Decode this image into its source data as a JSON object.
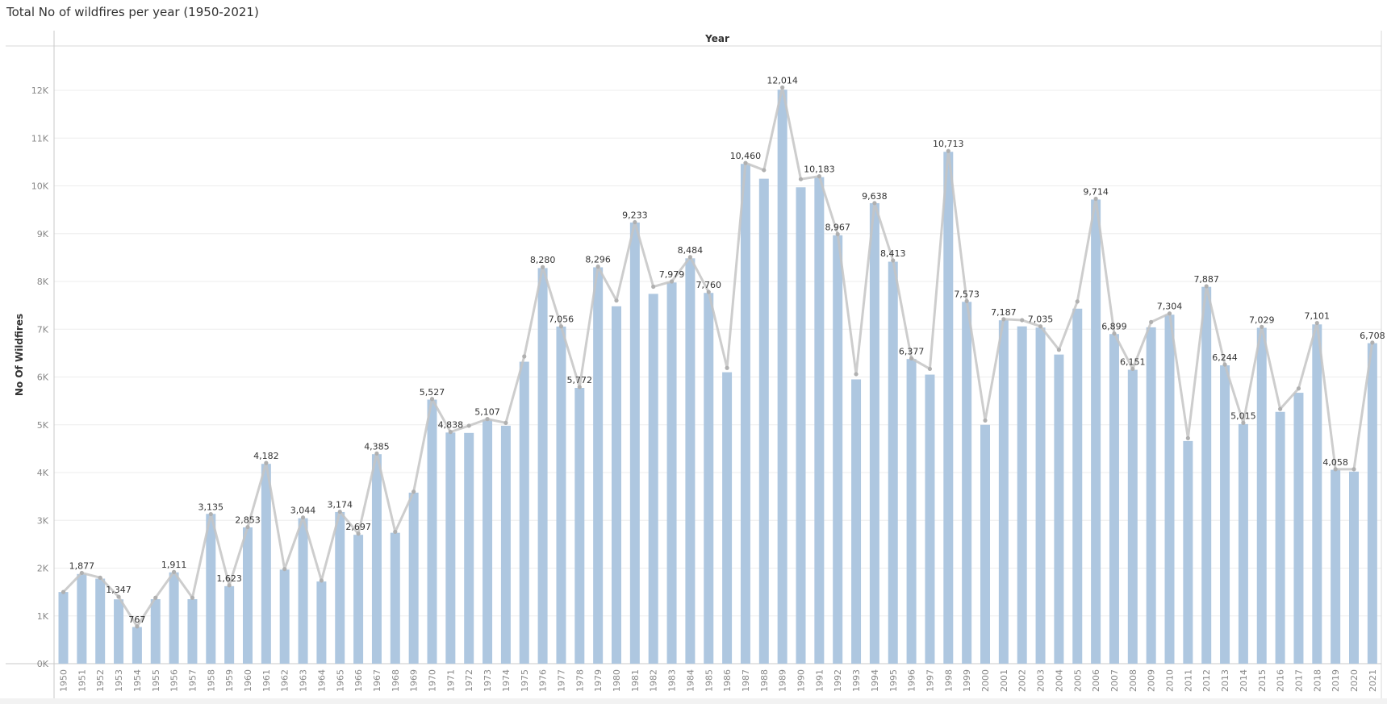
{
  "title": "Total No of wildfires per year (1950-2021)",
  "colors": {
    "bar": "#aec7e0",
    "line": "#c4c4c4",
    "marker": "#b0b0b0",
    "grid": "#ededed",
    "axis": "#c8c8c8",
    "text": "#666666",
    "label": "#333333"
  },
  "chart_data": {
    "type": "bar",
    "title": "Total No of wildfires per year (1950-2021)",
    "xlabel": "Year",
    "ylabel": "No Of Wildfires",
    "ylim": [
      0,
      12800
    ],
    "grid": true,
    "y_ticks": [
      {
        "value": 0,
        "label": "0K"
      },
      {
        "value": 1000,
        "label": "1K"
      },
      {
        "value": 2000,
        "label": "2K"
      },
      {
        "value": 3000,
        "label": "3K"
      },
      {
        "value": 4000,
        "label": "4K"
      },
      {
        "value": 5000,
        "label": "5K"
      },
      {
        "value": 6000,
        "label": "6K"
      },
      {
        "value": 7000,
        "label": "7K"
      },
      {
        "value": 8000,
        "label": "8K"
      },
      {
        "value": 9000,
        "label": "9K"
      },
      {
        "value": 10000,
        "label": "10K"
      },
      {
        "value": 11000,
        "label": "11K"
      },
      {
        "value": 12000,
        "label": "12K"
      }
    ],
    "categories": [
      "1950",
      "1951",
      "1952",
      "1953",
      "1954",
      "1955",
      "1956",
      "1957",
      "1958",
      "1959",
      "1960",
      "1961",
      "1962",
      "1963",
      "1964",
      "1965",
      "1966",
      "1967",
      "1968",
      "1969",
      "1970",
      "1971",
      "1972",
      "1973",
      "1974",
      "1975",
      "1976",
      "1977",
      "1978",
      "1979",
      "1980",
      "1981",
      "1982",
      "1983",
      "1984",
      "1985",
      "1986",
      "1987",
      "1988",
      "1989",
      "1990",
      "1991",
      "1992",
      "1993",
      "1994",
      "1995",
      "1996",
      "1997",
      "1998",
      "1999",
      "2000",
      "2001",
      "2002",
      "2003",
      "2004",
      "2005",
      "2006",
      "2007",
      "2008",
      "2009",
      "2010",
      "2011",
      "2012",
      "2013",
      "2014",
      "2015",
      "2016",
      "2017",
      "2018",
      "2019",
      "2020",
      "2021"
    ],
    "values": [
      1500,
      1877,
      1780,
      1347,
      767,
      1350,
      1911,
      1350,
      3135,
      1623,
      2853,
      4182,
      1970,
      3044,
      1720,
      3174,
      2697,
      4385,
      2740,
      3580,
      5527,
      4838,
      4830,
      5107,
      4980,
      6320,
      8280,
      7056,
      5772,
      8296,
      7480,
      9233,
      7740,
      7979,
      8484,
      7760,
      6100,
      10460,
      10150,
      12014,
      9970,
      10183,
      8967,
      5950,
      9638,
      8413,
      6377,
      6050,
      10713,
      7573,
      5000,
      7187,
      7060,
      7035,
      6470,
      7430,
      9714,
      6899,
      6151,
      7040,
      7304,
      4660,
      7887,
      6244,
      5015,
      7029,
      5270,
      5670,
      7101,
      4058,
      4020,
      6708
    ],
    "labels": [
      "",
      "1,877",
      "",
      "1,347",
      "767",
      "",
      "1,911",
      "",
      "3,135",
      "1,623",
      "2,853",
      "4,182",
      "",
      "3,044",
      "",
      "3,174",
      "2,697",
      "4,385",
      "",
      "",
      "5,527",
      "4,838",
      "",
      "5,107",
      "",
      "",
      "8,280",
      "7,056",
      "5,772",
      "8,296",
      "",
      "9,233",
      "",
      "7,979",
      "8,484",
      "7,760",
      "",
      "10,460",
      "",
      "12,014",
      "",
      "10,183",
      "8,967",
      "",
      "9,638",
      "8,413",
      "6,377",
      "",
      "10,713",
      "7,573",
      "",
      "7,187",
      "",
      "7,035",
      "",
      "",
      "9,714",
      "6,899",
      "6,151",
      "",
      "7,304",
      "",
      "7,887",
      "6,244",
      "5,015",
      "7,029",
      "",
      "",
      "7,101",
      "4,058",
      "",
      "6,708"
    ],
    "line_values": [
      1500,
      1900,
      1800,
      1400,
      780,
      1380,
      1920,
      1380,
      3130,
      1640,
      2860,
      4200,
      1980,
      3060,
      1740,
      3180,
      2720,
      4400,
      2760,
      3600,
      5540,
      4850,
      4980,
      5120,
      5040,
      6430,
      8300,
      7060,
      5790,
      8310,
      7600,
      9240,
      7890,
      8000,
      8510,
      7780,
      6190,
      10480,
      10330,
      12060,
      10140,
      10200,
      8990,
      6060,
      9640,
      8440,
      6390,
      6170,
      10730,
      7590,
      5090,
      7210,
      7190,
      7060,
      6570,
      7580,
      9730,
      6910,
      6170,
      7150,
      7330,
      4720,
      7900,
      6260,
      5040,
      7050,
      5330,
      5760,
      7130,
      4070,
      4070,
      6720
    ]
  }
}
